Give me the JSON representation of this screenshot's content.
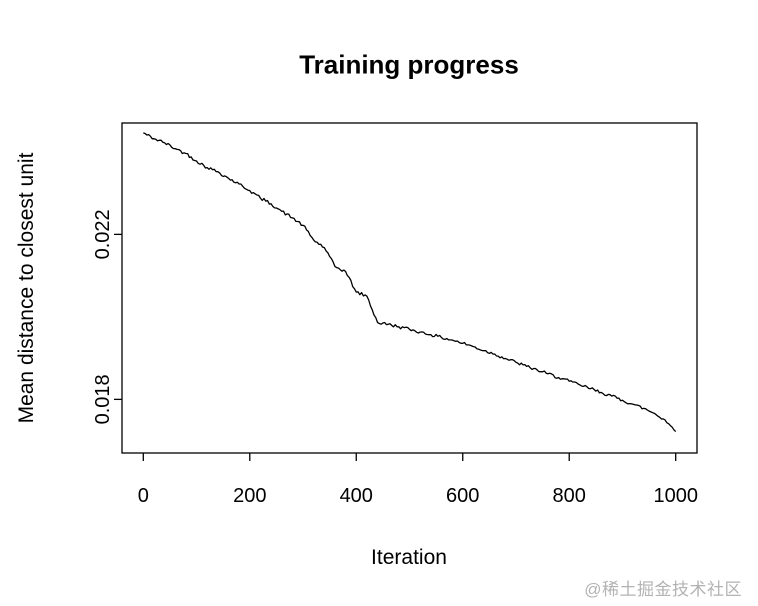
{
  "chart_data": {
    "type": "line",
    "title": "Training progress",
    "xlabel": "Iteration",
    "ylabel": "Mean distance to closest unit",
    "x_ticks": [
      0,
      200,
      400,
      600,
      800,
      1000
    ],
    "x_tick_labels": [
      "0",
      "200",
      "400",
      "600",
      "800",
      "1000"
    ],
    "y_ticks": [
      0.018,
      0.022
    ],
    "y_tick_labels": [
      "0.018",
      "0.022"
    ],
    "xlim": [
      -40,
      1040
    ],
    "ylim": [
      0.0167,
      0.0247
    ],
    "grid": false,
    "legend": null,
    "line_color": "#000000",
    "noise_amplitude": 4e-05,
    "series": [
      {
        "name": "mean-distance-to-closest-unit",
        "x": [
          0,
          20,
          40,
          60,
          80,
          100,
          120,
          140,
          160,
          180,
          200,
          220,
          240,
          260,
          280,
          300,
          320,
          340,
          360,
          380,
          400,
          420,
          440,
          460,
          480,
          500,
          520,
          540,
          560,
          580,
          600,
          620,
          640,
          660,
          680,
          700,
          720,
          740,
          760,
          780,
          800,
          820,
          840,
          860,
          880,
          900,
          920,
          940,
          960,
          980,
          1000
        ],
        "y": [
          0.02446,
          0.02432,
          0.02422,
          0.02408,
          0.02396,
          0.02378,
          0.02362,
          0.02352,
          0.02336,
          0.02322,
          0.02306,
          0.02288,
          0.02274,
          0.02256,
          0.0224,
          0.02222,
          0.02186,
          0.02168,
          0.02122,
          0.0211,
          0.0206,
          0.0205,
          0.01986,
          0.01982,
          0.01976,
          0.0197,
          0.01963,
          0.01957,
          0.0195,
          0.01944,
          0.01936,
          0.01928,
          0.01918,
          0.0191,
          0.01899,
          0.0189,
          0.0188,
          0.01871,
          0.01862,
          0.01853,
          0.01844,
          0.01835,
          0.01826,
          0.01817,
          0.01808,
          0.01798,
          0.01788,
          0.01778,
          0.01766,
          0.0175,
          0.01722
        ]
      }
    ]
  },
  "watermark": {
    "text": "@稀土掘金技术社区",
    "color": "#b3b3b3"
  }
}
